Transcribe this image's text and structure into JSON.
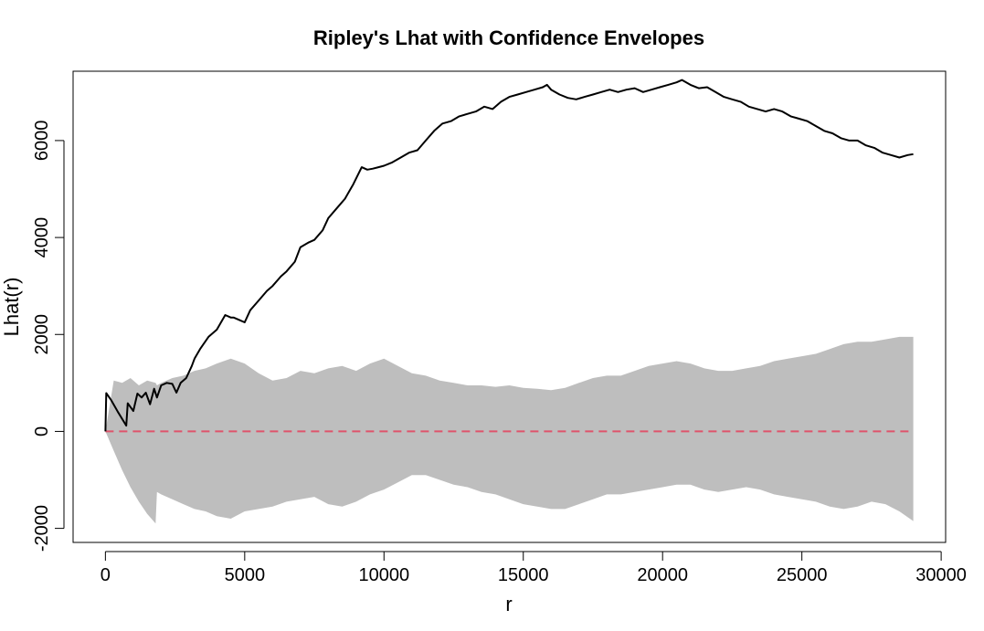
{
  "chart_data": {
    "type": "line",
    "title": "Ripley's Lhat with Confidence Envelopes",
    "xlabel": "r",
    "ylabel": "Lhat(r)",
    "xlim": [
      -1160,
      30160
    ],
    "ylim": [
      -2290,
      7430
    ],
    "x_ticks": [
      0,
      5000,
      10000,
      15000,
      20000,
      25000,
      30000
    ],
    "y_ticks": [
      -2000,
      0,
      2000,
      4000,
      6000
    ],
    "grid": false,
    "legend": "none",
    "colors": {
      "observed": "#000000",
      "envelope": "#bebebe",
      "reference": "#df536b"
    },
    "observed": {
      "x": [
        0,
        30,
        200,
        450,
        750,
        800,
        1000,
        1150,
        1300,
        1450,
        1600,
        1750,
        1850,
        2000,
        2200,
        2400,
        2550,
        2700,
        2900,
        3100,
        3200,
        3400,
        3700,
        4000,
        4300,
        4500,
        4600,
        4800,
        5000,
        5200,
        5500,
        5800,
        6000,
        6300,
        6500,
        6800,
        7000,
        7300,
        7500,
        7800,
        8000,
        8300,
        8600,
        8900,
        9200,
        9400,
        9600,
        9800,
        10000,
        10300,
        10600,
        10900,
        11200,
        11500,
        11800,
        12100,
        12400,
        12700,
        13000,
        13300,
        13600,
        13900,
        14200,
        14500,
        14800,
        15100,
        15400,
        15700,
        15850,
        16000,
        16300,
        16600,
        16900,
        17200,
        17500,
        17800,
        18100,
        18400,
        18700,
        19000,
        19300,
        19600,
        19900,
        20200,
        20500,
        20700,
        21000,
        21300,
        21600,
        21900,
        22200,
        22500,
        22800,
        23100,
        23400,
        23700,
        24000,
        24300,
        24600,
        24900,
        25200,
        25500,
        25800,
        26100,
        26400,
        26700,
        27000,
        27300,
        27600,
        27900,
        28200,
        28500,
        28800,
        29000
      ],
      "y": [
        0,
        790,
        650,
        400,
        120,
        580,
        420,
        780,
        700,
        800,
        560,
        880,
        700,
        950,
        1000,
        980,
        800,
        1000,
        1100,
        1350,
        1500,
        1700,
        1950,
        2100,
        2400,
        2350,
        2350,
        2300,
        2250,
        2500,
        2700,
        2900,
        3000,
        3200,
        3300,
        3500,
        3800,
        3900,
        3950,
        4150,
        4400,
        4600,
        4800,
        5100,
        5450,
        5400,
        5420,
        5450,
        5480,
        5550,
        5650,
        5750,
        5800,
        6000,
        6200,
        6350,
        6400,
        6500,
        6550,
        6600,
        6700,
        6650,
        6800,
        6900,
        6950,
        7000,
        7050,
        7100,
        7150,
        7050,
        6950,
        6880,
        6850,
        6900,
        6950,
        7000,
        7050,
        7000,
        7050,
        7080,
        7000,
        7050,
        7100,
        7150,
        7200,
        7250,
        7150,
        7080,
        7100,
        7000,
        6900,
        6850,
        6800,
        6700,
        6650,
        6600,
        6650,
        6600,
        6500,
        6450,
        6400,
        6300,
        6200,
        6150,
        6050,
        6000,
        6000,
        5900,
        5850,
        5750,
        5700,
        5650,
        5700,
        5720
      ]
    },
    "envelope": {
      "x": [
        0,
        300,
        600,
        900,
        1200,
        1500,
        1800,
        1850,
        2000,
        2400,
        2800,
        3200,
        3600,
        4000,
        4500,
        5000,
        5500,
        6000,
        6500,
        7000,
        7500,
        8000,
        8500,
        9000,
        9500,
        10000,
        10500,
        11000,
        11500,
        12000,
        12500,
        13000,
        13500,
        14000,
        14500,
        15000,
        15500,
        16000,
        16500,
        17000,
        17500,
        18000,
        18500,
        19000,
        19500,
        20000,
        20500,
        21000,
        21500,
        22000,
        22500,
        23000,
        23500,
        24000,
        24500,
        25000,
        25500,
        26000,
        26500,
        27000,
        27500,
        28000,
        28500,
        29000
      ],
      "upper": [
        0,
        1050,
        1000,
        1100,
        950,
        1050,
        1000,
        950,
        1000,
        1100,
        1150,
        1250,
        1300,
        1400,
        1500,
        1400,
        1200,
        1050,
        1100,
        1250,
        1200,
        1300,
        1350,
        1250,
        1400,
        1500,
        1350,
        1200,
        1150,
        1050,
        1000,
        950,
        950,
        920,
        950,
        900,
        880,
        850,
        900,
        1000,
        1100,
        1150,
        1150,
        1250,
        1350,
        1400,
        1450,
        1400,
        1300,
        1250,
        1250,
        1300,
        1350,
        1450,
        1500,
        1550,
        1600,
        1700,
        1800,
        1850,
        1850,
        1900,
        1950,
        1950
      ],
      "lower": [
        0,
        -400,
        -800,
        -1150,
        -1450,
        -1700,
        -1900,
        -1250,
        -1300,
        -1400,
        -1500,
        -1600,
        -1650,
        -1750,
        -1800,
        -1650,
        -1600,
        -1550,
        -1450,
        -1400,
        -1350,
        -1500,
        -1550,
        -1450,
        -1300,
        -1200,
        -1050,
        -900,
        -900,
        -1000,
        -1100,
        -1150,
        -1250,
        -1300,
        -1400,
        -1500,
        -1550,
        -1600,
        -1600,
        -1500,
        -1400,
        -1300,
        -1300,
        -1250,
        -1200,
        -1150,
        -1100,
        -1100,
        -1200,
        -1250,
        -1200,
        -1150,
        -1200,
        -1300,
        -1350,
        -1400,
        -1450,
        -1550,
        -1600,
        -1550,
        -1450,
        -1500,
        -1650,
        -1850
      ]
    },
    "reference": {
      "x": [
        0,
        29000
      ],
      "y": [
        0,
        0
      ]
    }
  }
}
